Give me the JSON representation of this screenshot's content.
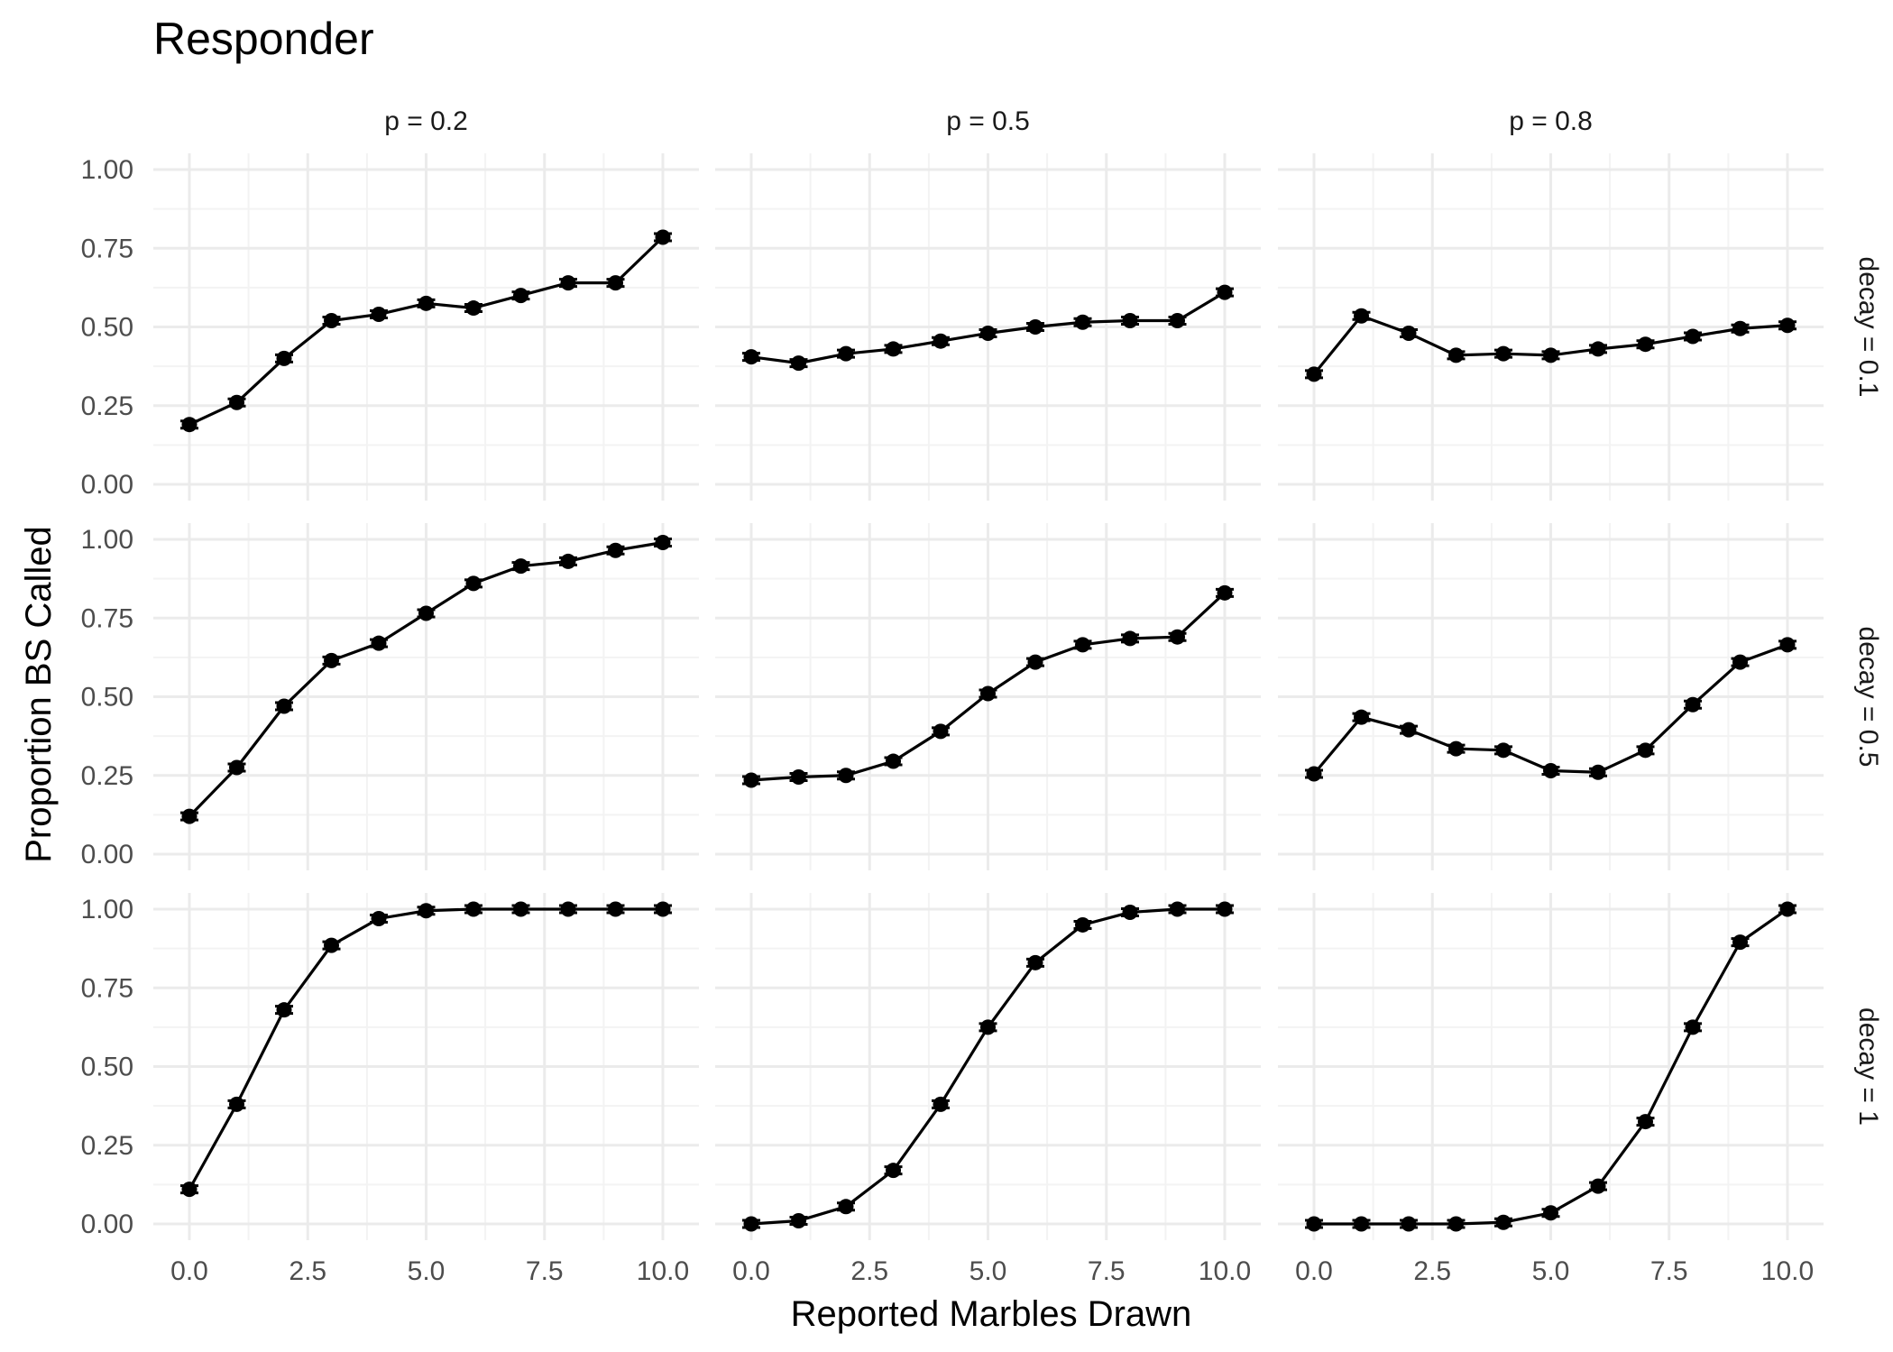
{
  "chart_data": {
    "type": "line",
    "title": "Responder",
    "xlabel": "Reported Marbles Drawn",
    "ylabel": "Proportion BS Called",
    "xlim": [
      0,
      10
    ],
    "ylim": [
      0,
      1
    ],
    "x_ticks": [
      "0.0",
      "2.5",
      "5.0",
      "7.5",
      "10.0"
    ],
    "y_ticks": [
      "0.00",
      "0.25",
      "0.50",
      "0.75",
      "1.00"
    ],
    "facet_cols": [
      "p = 0.2",
      "p = 0.5",
      "p = 0.8"
    ],
    "facet_rows": [
      "decay = 0.1",
      "decay = 0.5",
      "decay = 1"
    ],
    "x": [
      0,
      1,
      2,
      3,
      4,
      5,
      6,
      7,
      8,
      9,
      10
    ],
    "panels": [
      {
        "col": "p = 0.2",
        "row": "decay = 0.1",
        "values": [
          0.19,
          0.26,
          0.4,
          0.52,
          0.54,
          0.575,
          0.56,
          0.6,
          0.64,
          0.64,
          0.785
        ]
      },
      {
        "col": "p = 0.5",
        "row": "decay = 0.1",
        "values": [
          0.405,
          0.385,
          0.415,
          0.43,
          0.455,
          0.48,
          0.5,
          0.515,
          0.52,
          0.52,
          0.61
        ]
      },
      {
        "col": "p = 0.8",
        "row": "decay = 0.1",
        "values": [
          0.35,
          0.535,
          0.48,
          0.41,
          0.415,
          0.41,
          0.43,
          0.445,
          0.47,
          0.495,
          0.505
        ]
      },
      {
        "col": "p = 0.2",
        "row": "decay = 0.5",
        "values": [
          0.12,
          0.275,
          0.47,
          0.615,
          0.67,
          0.765,
          0.86,
          0.915,
          0.93,
          0.965,
          0.99
        ]
      },
      {
        "col": "p = 0.5",
        "row": "decay = 0.5",
        "values": [
          0.235,
          0.245,
          0.25,
          0.295,
          0.39,
          0.51,
          0.61,
          0.665,
          0.685,
          0.69,
          0.83
        ]
      },
      {
        "col": "p = 0.8",
        "row": "decay = 0.5",
        "values": [
          0.255,
          0.435,
          0.395,
          0.335,
          0.33,
          0.265,
          0.26,
          0.33,
          0.475,
          0.61,
          0.665
        ]
      },
      {
        "col": "p = 0.2",
        "row": "decay = 1",
        "values": [
          0.11,
          0.38,
          0.68,
          0.885,
          0.97,
          0.995,
          1.0,
          1.0,
          1.0,
          1.0,
          1.0
        ]
      },
      {
        "col": "p = 0.5",
        "row": "decay = 1",
        "values": [
          0.0,
          0.01,
          0.055,
          0.17,
          0.38,
          0.625,
          0.83,
          0.95,
          0.99,
          1.0,
          1.0
        ]
      },
      {
        "col": "p = 0.8",
        "row": "decay = 1",
        "values": [
          0.0,
          0.0,
          0.0,
          0.0,
          0.005,
          0.035,
          0.12,
          0.325,
          0.625,
          0.895,
          1.0
        ]
      }
    ],
    "grid": true,
    "legend": "none"
  }
}
